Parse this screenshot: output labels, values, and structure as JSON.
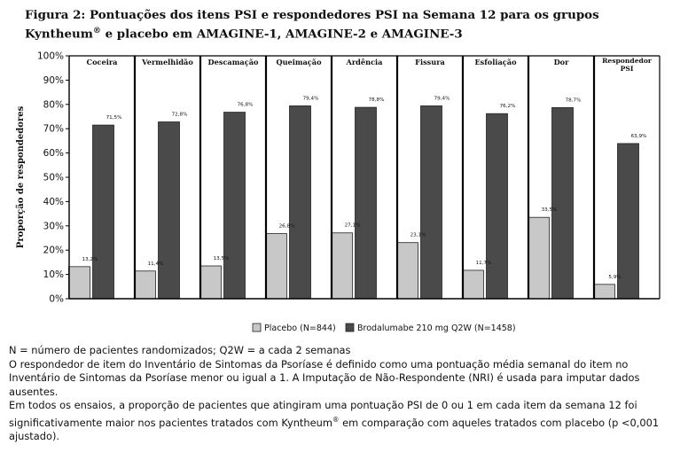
{
  "caption": {
    "title": "Figura 2: Pontuações dos itens PSI e respondedores PSI na Semana 12 para os grupos Kyntheum",
    "trademark": "®",
    "title_end": " e placebo em AMAGINE-1, AMAGINE-2 e AMAGINE-3"
  },
  "chart_data": {
    "type": "bar",
    "ylabel": "Proporção de respondedores",
    "ylim": [
      0,
      100
    ],
    "yticks": [
      "0%",
      "10%",
      "20%",
      "30%",
      "40%",
      "50%",
      "60%",
      "70%",
      "80%",
      "90%",
      "100%"
    ],
    "grid": false,
    "legend_position": "bottom-center",
    "categories": [
      "Coceira",
      "Vermelhidão",
      "Descamação",
      "Queimação",
      "Ardência",
      "Fissura",
      "Esfoliação",
      "Dor",
      "Respondedor PSI"
    ],
    "series": [
      {
        "name": "Placebo (N=844)",
        "color": "#c8c8c8",
        "values": [
          13.2,
          11.4,
          13.5,
          26.8,
          27.1,
          23.1,
          11.7,
          33.5,
          5.9
        ],
        "labels": [
          "13,2%",
          "11,4%",
          "13,5%",
          "26,8%",
          "27,1%",
          "23,1%",
          "11,7%",
          "33,5%",
          "5,9%"
        ]
      },
      {
        "name": "Brodalumabe 210 mg Q2W (N=1458)",
        "color": "#4a4a4a",
        "values": [
          71.5,
          72.8,
          76.8,
          79.4,
          78.8,
          79.4,
          76.2,
          78.7,
          63.9
        ],
        "labels": [
          "71,5%",
          "72,8%",
          "76,8%",
          "79,4%",
          "78,8%",
          "79,4%",
          "76,2%",
          "78,7%",
          "63,9%"
        ]
      }
    ]
  },
  "notes": {
    "line1": "N = número de pacientes randomizados; Q2W = a cada 2 semanas",
    "line2": "O respondedor de item do Inventário de Sintomas da Psoríase é definido como uma pontuação média semanal do item no Inventário de Sintomas da Psoríase menor ou igual a 1. A Imputação de Não-Respondente (NRI) é usada para imputar dados ausentes.",
    "line3_start": "Em todos os ensaios, a proporção de pacientes que atingiram uma pontuação PSI de 0 ou 1 em cada item da semana 12 foi significativamente maior nos pacientes tratados com Kyntheum",
    "trademark": "®",
    "line3_end": " em comparação com aqueles tratados com placebo (p <0,001 ajustado)."
  }
}
